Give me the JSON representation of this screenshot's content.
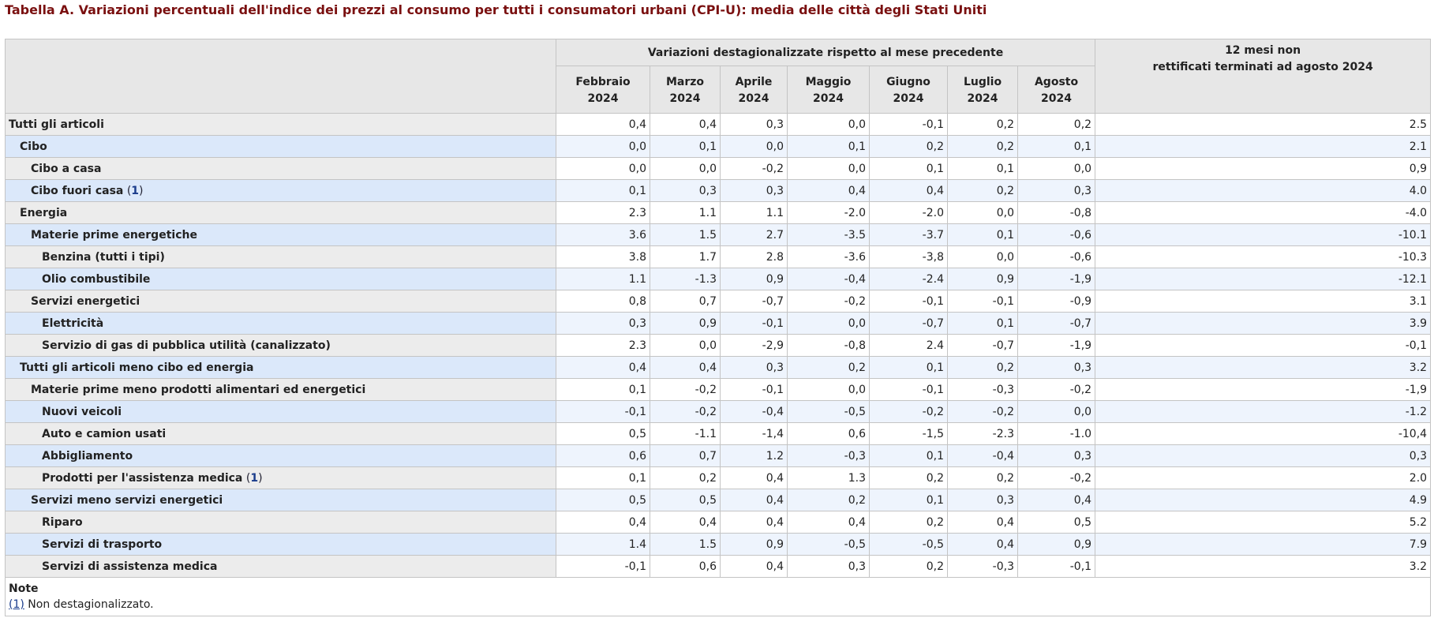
{
  "title": "Tabella A. Variazioni percentuali dell'indice dei prezzi al consumo per tutti i consumatori urbani (CPI-U): media delle città degli Stati Uniti",
  "header": {
    "group_label": "Variazioni destagionalizzate rispetto al mese precedente",
    "annual_label_line1": "12 mesi non",
    "annual_label_line2": "rettificati terminati ad agosto 2024",
    "months": [
      {
        "name": "Febbraio",
        "year": "2024"
      },
      {
        "name": "Marzo",
        "year": "2024"
      },
      {
        "name": "Aprile",
        "year": "2024"
      },
      {
        "name": "Maggio",
        "year": "2024"
      },
      {
        "name": "Giugno",
        "year": "2024"
      },
      {
        "name": "Luglio",
        "year": "2024"
      },
      {
        "name": "Agosto",
        "year": "2024"
      }
    ]
  },
  "rows": [
    {
      "label": "Tutti gli articoli",
      "level": 0,
      "footnote": "",
      "values": [
        "0,4",
        "0,4",
        "0,3",
        "0,0",
        "-0,1",
        "0,2",
        "0,2"
      ],
      "annual": "2.5"
    },
    {
      "label": "Cibo",
      "level": 1,
      "footnote": "",
      "values": [
        "0,0",
        "0,1",
        "0,0",
        "0,1",
        "0,2",
        "0,2",
        "0,1"
      ],
      "annual": "2.1"
    },
    {
      "label": "Cibo a casa",
      "level": 2,
      "footnote": "",
      "values": [
        "0,0",
        "0,0",
        "-0,2",
        "0,0",
        "0,1",
        "0,1",
        "0,0"
      ],
      "annual": "0,9"
    },
    {
      "label": "Cibo fuori casa",
      "level": 2,
      "footnote": "1",
      "values": [
        "0,1",
        "0,3",
        "0,3",
        "0,4",
        "0,4",
        "0,2",
        "0,3"
      ],
      "annual": "4.0"
    },
    {
      "label": "Energia",
      "level": 1,
      "footnote": "",
      "values": [
        "2.3",
        "1.1",
        "1.1",
        "-2.0",
        "-2.0",
        "0,0",
        "-0,8"
      ],
      "annual": "-4.0"
    },
    {
      "label": "Materie prime energetiche",
      "level": 2,
      "footnote": "",
      "values": [
        "3.6",
        "1.5",
        "2.7",
        "-3.5",
        "-3.7",
        "0,1",
        "-0,6"
      ],
      "annual": "-10.1"
    },
    {
      "label": "Benzina (tutti i tipi)",
      "level": 3,
      "footnote": "",
      "values": [
        "3.8",
        "1.7",
        "2.8",
        "-3.6",
        "-3,8",
        "0,0",
        "-0,6"
      ],
      "annual": "-10.3"
    },
    {
      "label": "Olio combustibile",
      "level": 3,
      "footnote": "",
      "values": [
        "1.1",
        "-1.3",
        "0,9",
        "-0,4",
        "-2.4",
        "0,9",
        "-1,9"
      ],
      "annual": "-12.1"
    },
    {
      "label": "Servizi energetici",
      "level": 2,
      "footnote": "",
      "values": [
        "0,8",
        "0,7",
        "-0,7",
        "-0,2",
        "-0,1",
        "-0,1",
        "-0,9"
      ],
      "annual": "3.1"
    },
    {
      "label": "Elettricità",
      "level": 3,
      "footnote": "",
      "values": [
        "0,3",
        "0,9",
        "-0,1",
        "0,0",
        "-0,7",
        "0,1",
        "-0,7"
      ],
      "annual": "3.9"
    },
    {
      "label": "Servizio di gas di pubblica utilità (canalizzato)",
      "level": 3,
      "footnote": "",
      "values": [
        "2.3",
        "0,0",
        "-2,9",
        "-0,8",
        "2.4",
        "-0,7",
        "-1,9"
      ],
      "annual": "-0,1"
    },
    {
      "label": "Tutti gli articoli meno cibo ed energia",
      "level": 1,
      "footnote": "",
      "values": [
        "0,4",
        "0,4",
        "0,3",
        "0,2",
        "0,1",
        "0,2",
        "0,3"
      ],
      "annual": "3.2"
    },
    {
      "label": "Materie prime meno prodotti alimentari ed energetici",
      "level": 2,
      "footnote": "",
      "values": [
        "0,1",
        "-0,2",
        "-0,1",
        "0,0",
        "-0,1",
        "-0,3",
        "-0,2"
      ],
      "annual": "-1,9"
    },
    {
      "label": "Nuovi veicoli",
      "level": 3,
      "footnote": "",
      "values": [
        "-0,1",
        "-0,2",
        "-0,4",
        "-0,5",
        "-0,2",
        "-0,2",
        "0,0"
      ],
      "annual": "-1.2"
    },
    {
      "label": "Auto e camion usati",
      "level": 3,
      "footnote": "",
      "values": [
        "0,5",
        "-1.1",
        "-1,4",
        "0,6",
        "-1,5",
        "-2.3",
        "-1.0"
      ],
      "annual": "-10,4"
    },
    {
      "label": "Abbigliamento",
      "level": 3,
      "footnote": "",
      "values": [
        "0,6",
        "0,7",
        "1.2",
        "-0,3",
        "0,1",
        "-0,4",
        "0,3"
      ],
      "annual": "0,3"
    },
    {
      "label": "Prodotti per l'assistenza medica",
      "level": 3,
      "footnote": "1",
      "values": [
        "0,1",
        "0,2",
        "0,4",
        "1.3",
        "0,2",
        "0,2",
        "-0,2"
      ],
      "annual": "2.0"
    },
    {
      "label": "Servizi meno servizi energetici",
      "level": 2,
      "footnote": "",
      "values": [
        "0,5",
        "0,5",
        "0,4",
        "0,2",
        "0,1",
        "0,3",
        "0,4"
      ],
      "annual": "4.9"
    },
    {
      "label": "Riparo",
      "level": 3,
      "footnote": "",
      "values": [
        "0,4",
        "0,4",
        "0,4",
        "0,4",
        "0,2",
        "0,4",
        "0,5"
      ],
      "annual": "5.2"
    },
    {
      "label": "Servizi di trasporto",
      "level": 3,
      "footnote": "",
      "values": [
        "1.4",
        "1.5",
        "0,9",
        "-0,5",
        "-0,5",
        "0,4",
        "0,9"
      ],
      "annual": "7.9"
    },
    {
      "label": "Servizi di assistenza medica",
      "level": 3,
      "footnote": "",
      "values": [
        "-0,1",
        "0,6",
        "0,4",
        "0,3",
        "0,2",
        "-0,3",
        "-0,1"
      ],
      "annual": "3.2"
    }
  ],
  "notes": {
    "title": "Note",
    "items": [
      {
        "ref": "(1)",
        "text": " Non destagionalizzato."
      }
    ]
  }
}
